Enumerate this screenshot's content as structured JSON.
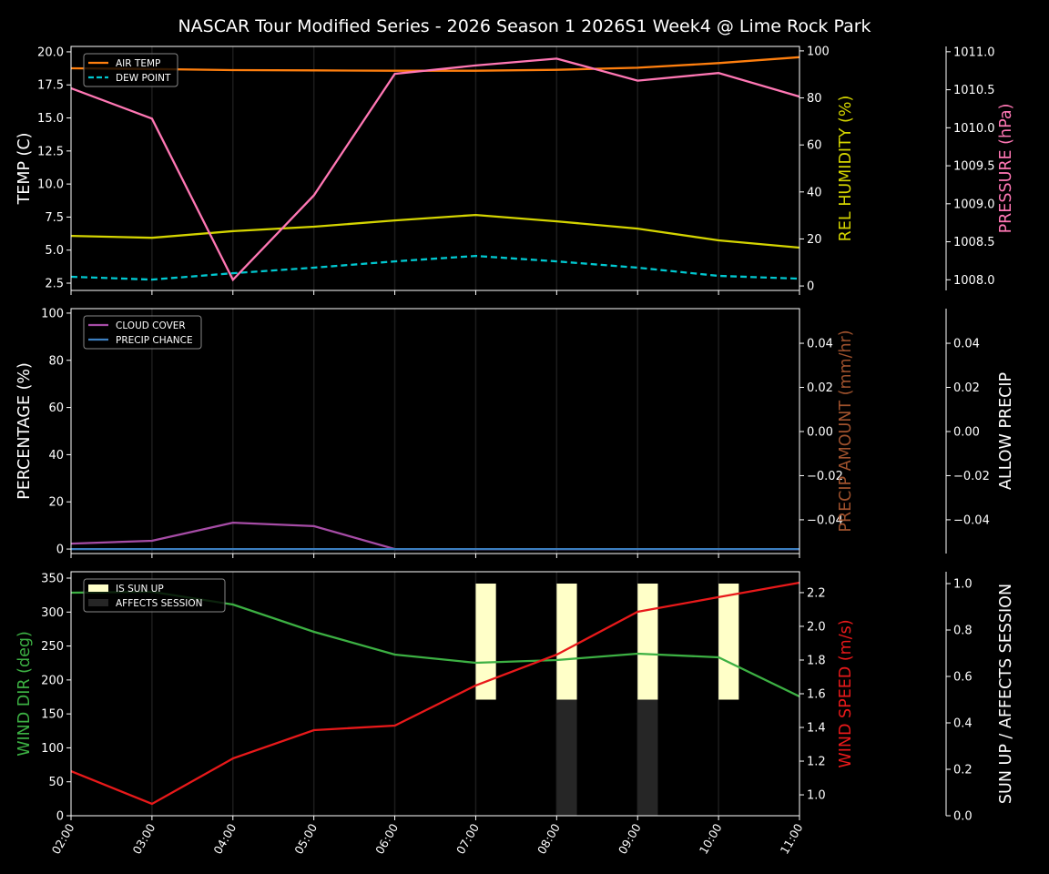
{
  "title": "NASCAR Tour Modified Series - 2026 Season 1 2026S1 Week4 @ Lime Rock Park",
  "x_labels": [
    "02:00",
    "03:00",
    "04:00",
    "05:00",
    "06:00",
    "07:00",
    "08:00",
    "09:00",
    "10:00",
    "11:00"
  ],
  "chart_data": [
    {
      "type": "line",
      "panel": "temperature",
      "axes": {
        "left": {
          "label": "TEMP (C)",
          "label_color": "#ffffff",
          "ylim": [
            1.95,
            20.41
          ],
          "ticks": [
            2.5,
            5.0,
            7.5,
            10.0,
            12.5,
            15.0,
            17.5,
            20.0
          ],
          "tick_labels": [
            "2.5",
            "5.0",
            "7.5",
            "10.0",
            "12.5",
            "15.0",
            "17.5",
            "20.0"
          ]
        },
        "right": {
          "label": "REL HUMIDITY (%)",
          "label_color": "#d4d400",
          "ylim": [
            -1.9,
            101.9
          ],
          "ticks": [
            0,
            20,
            40,
            60,
            80,
            100
          ],
          "tick_labels": [
            "0",
            "20",
            "40",
            "60",
            "80",
            "100"
          ]
        },
        "right2": {
          "label": "PRESSURE (hPa)",
          "label_color": "#ff77b4",
          "ylim": [
            1007.86,
            1011.07
          ],
          "ticks": [
            1008.0,
            1008.5,
            1009.0,
            1009.5,
            1010.0,
            1010.5,
            1011.0
          ],
          "tick_labels": [
            "1008.0",
            "1008.5",
            "1009.0",
            "1009.5",
            "1010.0",
            "1010.5",
            "1011.0"
          ]
        }
      },
      "series": [
        {
          "name": "AIR TEMP",
          "axis": "left",
          "color": "#ff7f0e",
          "dash": false,
          "legend": true,
          "values": [
            18.76,
            18.7,
            18.62,
            18.6,
            18.57,
            18.57,
            18.64,
            18.8,
            19.15,
            19.6
          ]
        },
        {
          "name": "DEW POINT",
          "axis": "left",
          "color": "#00c8d0",
          "dash": true,
          "legend": true,
          "values": [
            2.98,
            2.77,
            3.25,
            3.67,
            4.15,
            4.56,
            4.15,
            3.67,
            3.05,
            2.84
          ]
        },
        {
          "axis": "right",
          "color": "#d4d400",
          "dash": false,
          "legend": false,
          "values": [
            21.3,
            20.5,
            23.3,
            25.2,
            27.9,
            30.2,
            27.5,
            24.4,
            19.4,
            16.3
          ]
        },
        {
          "axis": "right2",
          "color": "#ff77b4",
          "dash": false,
          "legend": false,
          "values": [
            1010.52,
            1010.12,
            1008.0,
            1009.11,
            1010.71,
            1010.82,
            1010.91,
            1010.62,
            1010.72,
            1010.41
          ]
        }
      ],
      "legend_placement": "top-left"
    },
    {
      "type": "line",
      "panel": "precipitation",
      "axes": {
        "left": {
          "label": "PERCENTAGE (%)",
          "label_color": "#ffffff",
          "ylim": [
            -1.9,
            101.9
          ],
          "ticks": [
            0,
            20,
            40,
            60,
            80,
            100
          ],
          "tick_labels": [
            "0",
            "20",
            "40",
            "60",
            "80",
            "100"
          ]
        },
        "right": {
          "label": "PRECIP AMOUNT (mm/hr)",
          "label_color": "#a0522d",
          "ylim": [
            -0.0553,
            0.0557
          ],
          "ticks": [
            -0.04,
            -0.02,
            0,
            0.02,
            0.04
          ],
          "tick_labels": [
            "−0.04",
            "−0.02",
            "0.00",
            "0.02",
            "0.04"
          ]
        },
        "right2": {
          "label": "ALLOW PRECIP",
          "label_color": "#ffffff",
          "ylim": [
            -0.0553,
            0.0557
          ],
          "ticks": [
            -0.04,
            -0.02,
            0,
            0.02,
            0.04
          ],
          "tick_labels": [
            "−0.04",
            "−0.02",
            "0.00",
            "0.02",
            "0.04"
          ]
        }
      },
      "series": [
        {
          "name": "CLOUD COVER",
          "axis": "left",
          "color": "#a64ca6",
          "dash": false,
          "legend": true,
          "values": [
            2.3,
            3.5,
            11.2,
            9.7,
            0,
            0,
            0,
            0,
            0,
            0
          ]
        },
        {
          "name": "PRECIP CHANCE",
          "axis": "left",
          "color": "#3c7fc0",
          "dash": false,
          "legend": true,
          "values": [
            0,
            0,
            0,
            0,
            0,
            0,
            0,
            0,
            0,
            0
          ]
        }
      ],
      "legend_placement": "top-left"
    },
    {
      "type": "line+bar",
      "panel": "wind",
      "axes": {
        "left": {
          "label": "WIND DIR (deg)",
          "label_color": "#3cb043",
          "ylim": [
            0,
            359.4
          ],
          "ticks": [
            0,
            50,
            100,
            150,
            200,
            250,
            300,
            350
          ],
          "tick_labels": [
            "0",
            "50",
            "100",
            "150",
            "200",
            "250",
            "300",
            "350"
          ]
        },
        "right": {
          "label": "WIND SPEED (m/s)",
          "label_color": "#e8191a",
          "ylim": [
            0.876,
            2.324
          ],
          "ticks": [
            1.0,
            1.2,
            1.4,
            1.6,
            1.8,
            2.0,
            2.2
          ],
          "tick_labels": [
            "1.0",
            "1.2",
            "1.4",
            "1.6",
            "1.8",
            "2.0",
            "2.2"
          ]
        },
        "right2": {
          "label": "SUN UP / AFFECTS SESSION",
          "label_color": "#ffffff",
          "ylim": [
            0,
            1.051
          ],
          "ticks": [
            0,
            0.2,
            0.4,
            0.6,
            0.8,
            1.0
          ],
          "tick_labels": [
            "0.0",
            "0.2",
            "0.4",
            "0.6",
            "0.8",
            "1.0"
          ]
        }
      },
      "bars": [
        {
          "name": "IS SUN UP",
          "axis": "right2",
          "color": "#ffffc8",
          "legend": true,
          "base": 0.5,
          "values": [
            0,
            0,
            0,
            0,
            0,
            1,
            1,
            1,
            1,
            0
          ]
        },
        {
          "name": "AFFECTS SESSION",
          "axis": "right2",
          "color": "#262626",
          "legend": true,
          "base": 0,
          "values": [
            0,
            0,
            0,
            0,
            0,
            0,
            0.5,
            0.5,
            0,
            0
          ]
        }
      ],
      "series": [
        {
          "axis": "left",
          "color": "#3cb043",
          "dash": false,
          "legend": false,
          "values": [
            328.5,
            329.9,
            311.1,
            270.9,
            237.4,
            225.3,
            229.3,
            238.7,
            233.3,
            175.7
          ]
        },
        {
          "axis": "right",
          "color": "#e8191a",
          "dash": false,
          "legend": false,
          "values": [
            1.14,
            0.946,
            1.216,
            1.384,
            1.411,
            1.649,
            1.832,
            2.086,
            2.173,
            2.259
          ]
        }
      ],
      "legend_placement": "top-left"
    }
  ]
}
